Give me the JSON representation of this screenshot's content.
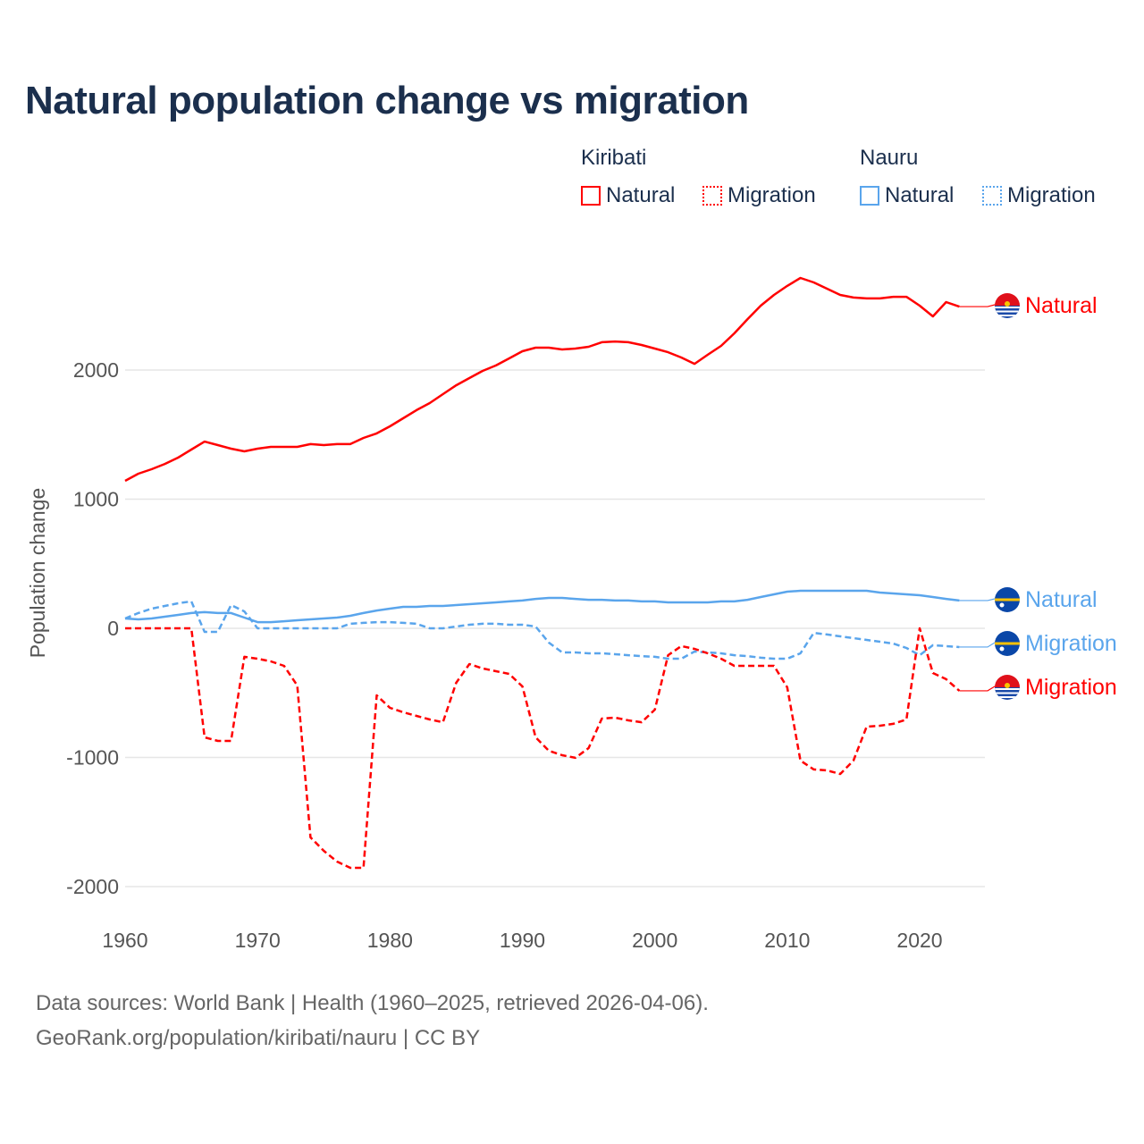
{
  "colors": {
    "kiribati": "#ff0000",
    "nauru": "#5aa5ec",
    "title": "#1b2f4d",
    "grid": "#e6e6e6",
    "axis_text": "#555555"
  },
  "legend": {
    "groups": [
      {
        "name": "Kiribati",
        "items": [
          {
            "label": "Natural",
            "style": "solid"
          },
          {
            "label": "Migration",
            "style": "dotted"
          }
        ]
      },
      {
        "name": "Nauru",
        "items": [
          {
            "label": "Natural",
            "style": "solid"
          },
          {
            "label": "Migration",
            "style": "dotted"
          }
        ]
      }
    ]
  },
  "footer": {
    "line1": "Data sources: World Bank | Health (1960–2025, retrieved 2026-04-06).",
    "line2": "GeoRank.org/population/kiribati/nauru | CC BY"
  },
  "chart_data": {
    "type": "line",
    "title": "Natural population change vs migration",
    "xlabel": "",
    "ylabel": "Population change",
    "xlim": [
      1960,
      2025
    ],
    "ylim": [
      -2200,
      2900
    ],
    "x_ticks": [
      1960,
      1970,
      1980,
      1990,
      2000,
      2010,
      2020
    ],
    "y_ticks": [
      -2000,
      -1000,
      0,
      1000,
      2000
    ],
    "grid": true,
    "x_start": 1960,
    "series": [
      {
        "name": "Kiribati Natural",
        "country": "Kiribati",
        "end_label": "Natural",
        "color": "#ff0000",
        "dash": false,
        "flag": "kiribati",
        "values": [
          1142,
          1197,
          1232,
          1273,
          1322,
          1384,
          1446,
          1419,
          1391,
          1370,
          1391,
          1405,
          1405,
          1405,
          1426,
          1419,
          1426,
          1426,
          1474,
          1509,
          1564,
          1626,
          1689,
          1744,
          1813,
          1882,
          1938,
          1993,
          2035,
          2090,
          2145,
          2173,
          2173,
          2159,
          2166,
          2180,
          2215,
          2221,
          2215,
          2194,
          2166,
          2138,
          2097,
          2048,
          2118,
          2187,
          2284,
          2394,
          2498,
          2581,
          2651,
          2713,
          2678,
          2630,
          2581,
          2561,
          2554,
          2554,
          2567,
          2567,
          2498,
          2415,
          2526,
          2491
        ]
      },
      {
        "name": "Nauru Natural",
        "country": "Nauru",
        "end_label": "Natural",
        "color": "#5aa5ec",
        "dash": false,
        "flag": "nauru",
        "values": [
          76,
          69,
          76,
          90,
          104,
          118,
          125,
          118,
          118,
          83,
          48,
          48,
          55,
          62,
          69,
          76,
          83,
          97,
          118,
          138,
          152,
          166,
          166,
          173,
          173,
          180,
          187,
          194,
          201,
          208,
          215,
          228,
          235,
          235,
          228,
          221,
          221,
          215,
          215,
          208,
          208,
          201,
          201,
          201,
          201,
          208,
          208,
          221,
          242,
          263,
          284,
          291,
          291,
          291,
          291,
          291,
          291,
          277,
          270,
          263,
          256,
          242,
          228,
          215
        ]
      },
      {
        "name": "Nauru Migration",
        "country": "Nauru",
        "end_label": "Migration",
        "color": "#5aa5ec",
        "dash": true,
        "flag": "nauru",
        "values": [
          76,
          118,
          152,
          173,
          194,
          208,
          -28,
          -28,
          180,
          131,
          0,
          0,
          0,
          0,
          0,
          0,
          0,
          35,
          42,
          48,
          48,
          42,
          35,
          0,
          0,
          14,
          28,
          35,
          35,
          28,
          28,
          14,
          -111,
          -187,
          -187,
          -194,
          -194,
          -201,
          -208,
          -215,
          -221,
          -235,
          -235,
          -180,
          -187,
          -194,
          -208,
          -215,
          -228,
          -235,
          -235,
          -194,
          -35,
          -48,
          -62,
          -76,
          -90,
          -104,
          -118,
          -152,
          -208,
          -131,
          -138,
          -145
        ]
      },
      {
        "name": "Kiribati Migration",
        "country": "Kiribati",
        "end_label": "Migration",
        "color": "#ff0000",
        "dash": true,
        "flag": "kiribati",
        "values": [
          0,
          0,
          0,
          0,
          0,
          0,
          -844,
          -872,
          -872,
          -221,
          -235,
          -256,
          -291,
          -443,
          -1619,
          -1723,
          -1806,
          -1855,
          -1855,
          -519,
          -616,
          -650,
          -678,
          -706,
          -727,
          -422,
          -277,
          -311,
          -332,
          -353,
          -450,
          -844,
          -948,
          -983,
          -1003,
          -927,
          -699,
          -692,
          -713,
          -727,
          -630,
          -208,
          -138,
          -159,
          -194,
          -235,
          -291,
          -291,
          -291,
          -291,
          -457,
          -1024,
          -1093,
          -1100,
          -1128,
          -1024,
          -761,
          -754,
          -740,
          -706,
          0,
          -346,
          -394,
          -484
        ]
      }
    ]
  }
}
